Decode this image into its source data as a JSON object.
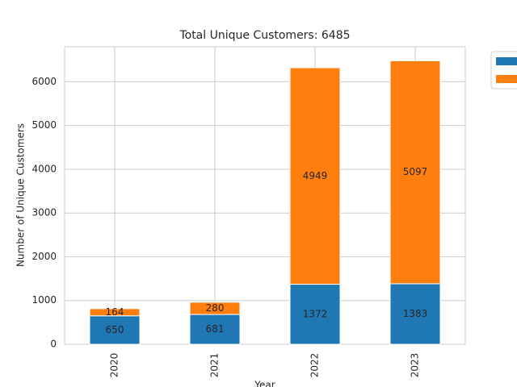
{
  "chart_data": {
    "type": "stacked_bar",
    "title": "Total Unique Customers: 6485",
    "x_label": "Year",
    "y_label": "Number of Unique Customers",
    "categories": [
      "2020",
      "2021",
      "2022",
      "2023"
    ],
    "series": [
      {
        "color": "#1f77b4",
        "values": [
          650,
          681,
          1372,
          1383
        ]
      },
      {
        "color": "#ff7f0e",
        "values": [
          164,
          280,
          4949,
          5097
        ]
      }
    ],
    "ylim": [
      0,
      6800
    ],
    "yticks": [
      0,
      1000,
      2000,
      3000,
      4000,
      5000,
      6000
    ],
    "grid": true,
    "legend": "outside upper right"
  }
}
